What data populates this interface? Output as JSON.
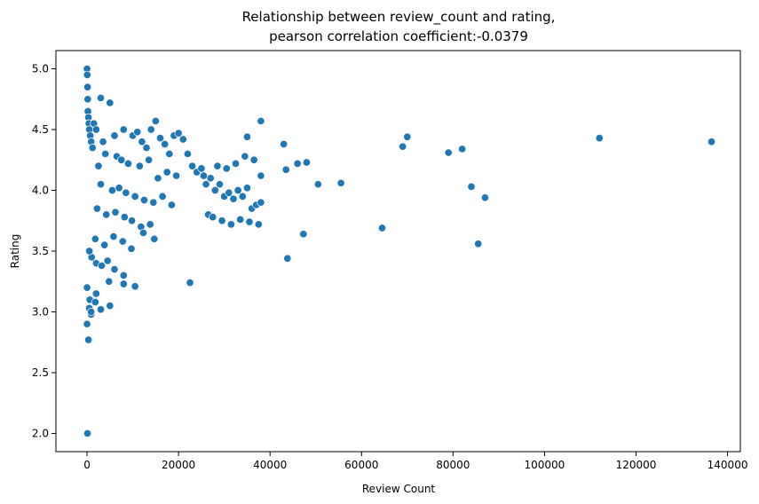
{
  "chart_data": {
    "type": "scatter",
    "title_line1": "Relationship between review_count and rating,",
    "title_line2": "pearson correlation coefficient:-0.0379",
    "xlabel": "Review Count",
    "ylabel": "Rating",
    "xlim": [
      -6800,
      142800
    ],
    "ylim": [
      1.85,
      5.15
    ],
    "x_ticks": [
      0,
      20000,
      40000,
      60000,
      80000,
      100000,
      120000,
      140000
    ],
    "x_tick_labels": [
      "0",
      "20000",
      "40000",
      "60000",
      "80000",
      "100000",
      "120000",
      "140000"
    ],
    "y_ticks": [
      2.0,
      2.5,
      3.0,
      3.5,
      4.0,
      4.5,
      5.0
    ],
    "y_tick_labels": [
      "2.0",
      "2.5",
      "3.0",
      "3.5",
      "4.0",
      "4.5",
      "5.0"
    ],
    "marker_color": "#1f77b4",
    "grid": false,
    "x": [
      0,
      50,
      100,
      150,
      200,
      300,
      400,
      500,
      700,
      900,
      1200,
      0,
      100,
      300,
      0,
      500,
      900,
      1500,
      2000,
      3000,
      3500,
      5000,
      6000,
      8000,
      10000,
      11000,
      12000,
      13000,
      14000,
      15000,
      16000,
      17000,
      18000,
      19000,
      20000,
      21000,
      22000,
      23000,
      24000,
      25000,
      2500,
      4000,
      6500,
      7500,
      9000,
      11500,
      13500,
      15500,
      17500,
      19500,
      3000,
      5500,
      7000,
      8500,
      10500,
      12500,
      14500,
      16500,
      18500,
      2200,
      4200,
      6200,
      8200,
      9800,
      11800,
      13800,
      1800,
      3800,
      5800,
      7800,
      9700,
      12300,
      14700,
      1000,
      2000,
      3200,
      4500,
      6000,
      8000,
      26000,
      27000,
      28000,
      29000,
      30000,
      31000,
      32000,
      33000,
      34000,
      35000,
      36000,
      37000,
      38000,
      26500,
      27500,
      29500,
      31500,
      33500,
      35500,
      37500,
      25500,
      28500,
      30500,
      32500,
      34500,
      36500,
      38000,
      35000,
      38000,
      43000,
      43500,
      46000,
      48000,
      50500,
      55500,
      64500,
      69000,
      70000,
      79000,
      82000,
      84000,
      85500,
      87000,
      112000,
      136500,
      43800,
      47300,
      22500,
      10500,
      8000,
      5000,
      2000,
      500,
      600,
      900,
      1800,
      3000,
      4800
    ],
    "y": [
      5.0,
      4.95,
      4.85,
      4.75,
      4.65,
      4.6,
      4.55,
      4.5,
      4.45,
      4.4,
      4.35,
      2.9,
      2.0,
      2.77,
      3.2,
      3.03,
      2.98,
      4.55,
      4.5,
      4.76,
      4.4,
      4.72,
      4.45,
      4.5,
      4.45,
      4.48,
      4.4,
      4.35,
      4.5,
      4.57,
      4.43,
      4.38,
      4.3,
      4.45,
      4.47,
      4.42,
      4.3,
      4.2,
      4.15,
      4.18,
      4.2,
      4.3,
      4.28,
      4.25,
      4.22,
      4.2,
      4.25,
      4.1,
      4.15,
      4.12,
      4.05,
      4.0,
      4.02,
      3.98,
      3.95,
      3.92,
      3.9,
      3.95,
      3.88,
      3.85,
      3.8,
      3.82,
      3.78,
      3.75,
      3.7,
      3.72,
      3.6,
      3.55,
      3.62,
      3.58,
      3.52,
      3.65,
      3.6,
      3.45,
      3.4,
      3.38,
      3.42,
      3.35,
      3.3,
      4.05,
      4.1,
      4.0,
      4.05,
      3.95,
      3.98,
      3.93,
      4.0,
      3.95,
      4.02,
      3.85,
      3.88,
      3.9,
      3.8,
      3.78,
      3.75,
      3.72,
      3.76,
      3.74,
      3.72,
      4.12,
      4.2,
      4.18,
      4.22,
      4.28,
      4.25,
      4.57,
      4.44,
      4.12,
      4.38,
      4.17,
      4.22,
      4.23,
      4.05,
      4.06,
      3.69,
      4.36,
      4.44,
      4.31,
      4.34,
      4.03,
      3.56,
      3.94,
      4.43,
      4.4,
      3.44,
      3.64,
      3.24,
      3.21,
      3.23,
      3.05,
      3.15,
      3.5,
      3.1,
      3.0,
      3.08,
      3.02,
      3.25
    ]
  }
}
